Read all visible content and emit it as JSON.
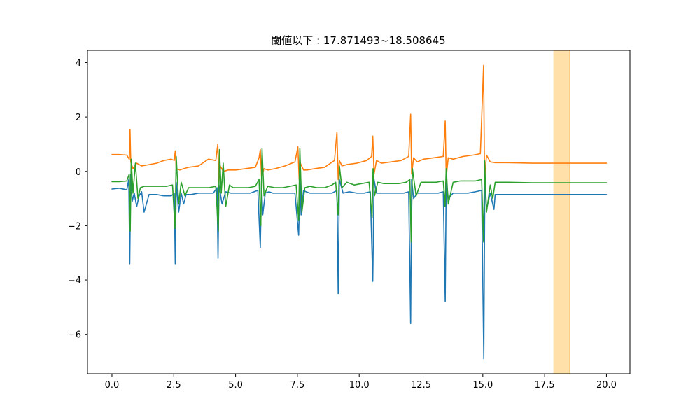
{
  "chart_data": {
    "type": "line",
    "title": "閾値以下 : 17.871493~18.508645",
    "xlabel": "",
    "ylabel": "",
    "xlim": [
      -0.99,
      20.95
    ],
    "ylim": [
      -7.45,
      4.45
    ],
    "grid": false,
    "legend": "none",
    "xticks": [
      0.0,
      2.5,
      5.0,
      7.5,
      10.0,
      12.5,
      15.0,
      17.5,
      20.0
    ],
    "xtick_labels": [
      "0.0",
      "2.5",
      "5.0",
      "7.5",
      "10.0",
      "12.5",
      "15.0",
      "17.5",
      "20.0"
    ],
    "yticks": [
      4,
      2,
      0,
      -2,
      -4,
      -6
    ],
    "ytick_labels": [
      "4",
      "2",
      "0",
      "−2",
      "−4",
      "−6"
    ],
    "highlight_span": {
      "x_start": 17.871493,
      "x_end": 18.508645,
      "color": "#ffe0a8",
      "edge_color": "#f7c97a"
    },
    "series": [
      {
        "color": "#1f77b4",
        "x": [
          0.0,
          0.3,
          0.6,
          0.68,
          0.72,
          0.76,
          0.82,
          0.9,
          1.0,
          1.1,
          1.2,
          1.3,
          1.5,
          1.8,
          2.1,
          2.4,
          2.52,
          2.56,
          2.6,
          2.7,
          2.8,
          2.9,
          3.0,
          3.2,
          3.5,
          3.8,
          4.1,
          4.25,
          4.29,
          4.33,
          4.45,
          4.6,
          4.8,
          5.0,
          5.3,
          5.6,
          5.9,
          6.0,
          6.05,
          6.1,
          6.2,
          6.35,
          6.5,
          6.8,
          7.1,
          7.4,
          7.55,
          7.6,
          7.65,
          7.75,
          7.85,
          8.0,
          8.3,
          8.6,
          8.9,
          9.1,
          9.15,
          9.2,
          9.35,
          9.6,
          9.9,
          10.2,
          10.45,
          10.55,
          10.6,
          10.7,
          10.9,
          11.2,
          11.5,
          11.8,
          12.0,
          12.08,
          12.12,
          12.2,
          12.35,
          12.6,
          12.9,
          13.2,
          13.4,
          13.48,
          13.52,
          13.6,
          13.8,
          14.1,
          14.4,
          14.7,
          14.95,
          15.04,
          15.08,
          15.15,
          15.3,
          15.45,
          15.5,
          15.6,
          16.0,
          17.0,
          18.0,
          19.0,
          20.0
        ],
        "y": [
          -0.65,
          -0.62,
          -0.68,
          -0.3,
          -3.4,
          -0.1,
          -1.1,
          -0.8,
          -1.3,
          -0.9,
          -0.75,
          -1.5,
          -0.85,
          -0.85,
          -0.9,
          -0.9,
          -0.8,
          -3.4,
          -0.4,
          -1.5,
          -0.8,
          -1.2,
          -0.85,
          -0.85,
          -0.8,
          -0.8,
          -0.8,
          -0.6,
          -3.2,
          -0.5,
          -1.2,
          -0.75,
          -0.8,
          -0.8,
          -0.8,
          -0.8,
          -0.7,
          -2.8,
          -0.4,
          -1.6,
          -0.8,
          -0.75,
          -0.8,
          -0.8,
          -0.8,
          -0.8,
          -2.35,
          -0.3,
          -1.6,
          -0.7,
          -0.75,
          -0.8,
          -0.8,
          -0.8,
          -0.8,
          -0.7,
          -4.5,
          -0.3,
          -0.8,
          -0.75,
          -0.8,
          -0.8,
          -0.75,
          -4.05,
          -0.3,
          -0.8,
          -0.8,
          -0.8,
          -0.8,
          -0.8,
          -0.75,
          -5.6,
          -0.3,
          -1.0,
          -0.8,
          -0.8,
          -0.8,
          -0.8,
          -0.75,
          -4.8,
          -0.3,
          -1.0,
          -0.8,
          -0.8,
          -0.8,
          -0.75,
          -0.7,
          -6.9,
          -0.3,
          -1.4,
          -0.8,
          -1.4,
          -0.85,
          -0.85,
          -0.85,
          -0.85,
          -0.85,
          -0.85,
          -0.85
        ]
      },
      {
        "color": "#ff7f0e",
        "x": [
          0.0,
          0.3,
          0.6,
          0.7,
          0.73,
          0.76,
          0.85,
          1.0,
          1.2,
          1.5,
          1.8,
          2.1,
          2.4,
          2.52,
          2.56,
          2.6,
          2.75,
          2.9,
          3.1,
          3.5,
          3.9,
          4.2,
          4.28,
          4.32,
          4.38,
          4.5,
          4.7,
          5.0,
          5.4,
          5.8,
          5.95,
          6.0,
          6.05,
          6.15,
          6.3,
          6.6,
          7.0,
          7.4,
          7.52,
          7.57,
          7.62,
          7.75,
          7.9,
          8.2,
          8.6,
          9.0,
          9.1,
          9.15,
          9.2,
          9.3,
          9.5,
          9.9,
          10.3,
          10.5,
          10.55,
          10.6,
          10.7,
          10.9,
          11.3,
          11.7,
          12.0,
          12.08,
          12.12,
          12.2,
          12.35,
          12.6,
          13.0,
          13.4,
          13.48,
          13.52,
          13.6,
          13.8,
          14.2,
          14.6,
          14.9,
          15.03,
          15.07,
          15.15,
          15.3,
          15.5,
          16.0,
          17.0,
          18.0,
          19.0,
          20.0
        ],
        "y": [
          0.62,
          0.62,
          0.6,
          0.45,
          1.55,
          0.35,
          0.1,
          0.3,
          0.2,
          0.25,
          0.3,
          0.4,
          0.45,
          0.4,
          0.75,
          0.1,
          0.05,
          0.1,
          0.15,
          0.2,
          0.45,
          0.4,
          1.0,
          -0.4,
          0.2,
          0.0,
          0.05,
          0.05,
          0.1,
          0.15,
          0.5,
          0.8,
          -0.2,
          0.1,
          0.05,
          0.1,
          0.2,
          0.35,
          0.9,
          -0.3,
          0.3,
          0.05,
          0.05,
          0.1,
          0.15,
          0.4,
          1.45,
          -0.3,
          0.4,
          0.2,
          0.25,
          0.3,
          0.4,
          0.55,
          1.3,
          -0.1,
          0.4,
          0.3,
          0.35,
          0.4,
          0.55,
          2.1,
          -0.1,
          0.5,
          0.35,
          0.45,
          0.5,
          0.55,
          1.85,
          -0.2,
          0.5,
          0.45,
          0.55,
          0.6,
          0.65,
          3.9,
          -0.3,
          0.6,
          0.35,
          0.32,
          0.32,
          0.3,
          0.3,
          0.3,
          0.3
        ]
      },
      {
        "color": "#2ca02c",
        "x": [
          0.0,
          0.3,
          0.6,
          0.7,
          0.74,
          0.78,
          0.85,
          0.95,
          1.05,
          1.15,
          1.3,
          1.6,
          1.9,
          2.2,
          2.45,
          2.55,
          2.6,
          2.7,
          2.8,
          2.95,
          3.1,
          3.3,
          3.6,
          3.9,
          4.2,
          4.3,
          4.35,
          4.42,
          4.5,
          4.6,
          4.75,
          4.9,
          5.2,
          5.5,
          5.8,
          5.95,
          6.02,
          6.07,
          6.15,
          6.3,
          6.6,
          6.9,
          7.2,
          7.45,
          7.55,
          7.6,
          7.68,
          7.8,
          8.0,
          8.3,
          8.6,
          8.9,
          9.05,
          9.15,
          9.2,
          9.3,
          9.5,
          9.8,
          10.1,
          10.4,
          10.52,
          10.56,
          10.62,
          10.75,
          11.0,
          11.3,
          11.6,
          11.9,
          12.05,
          12.1,
          12.15,
          12.3,
          12.5,
          12.8,
          13.1,
          13.4,
          13.47,
          13.52,
          13.6,
          13.8,
          14.1,
          14.4,
          14.7,
          14.95,
          15.03,
          15.07,
          15.15,
          15.3,
          15.4,
          15.5,
          15.6,
          16.0,
          17.0,
          18.0,
          19.0,
          20.0
        ],
        "y": [
          -0.38,
          -0.38,
          -0.35,
          -0.1,
          -2.2,
          0.45,
          -0.8,
          0.3,
          -1.0,
          -0.6,
          -0.55,
          -0.55,
          -0.55,
          -0.55,
          -0.5,
          -2.1,
          0.55,
          -1.2,
          -0.4,
          -0.9,
          -0.6,
          -0.6,
          -0.6,
          -0.6,
          -0.55,
          -2.2,
          0.8,
          -0.8,
          0.3,
          -1.3,
          -0.5,
          -0.6,
          -0.6,
          -0.6,
          -0.55,
          -0.3,
          -2.0,
          0.85,
          -0.9,
          -0.55,
          -0.6,
          -0.6,
          -0.55,
          -0.5,
          -1.8,
          0.85,
          -1.5,
          -0.6,
          -0.55,
          -0.6,
          -0.6,
          -0.5,
          -0.4,
          -1.6,
          0.2,
          -0.6,
          -0.4,
          -0.5,
          -0.45,
          -0.4,
          -1.7,
          0.1,
          -0.9,
          -0.4,
          -0.45,
          -0.45,
          -0.45,
          -0.4,
          -0.3,
          -2.6,
          0.1,
          -0.9,
          -0.4,
          -0.4,
          -0.4,
          -0.35,
          -1.3,
          0.1,
          -1.2,
          -0.4,
          -0.35,
          -0.35,
          -0.35,
          -0.3,
          -2.6,
          0.4,
          -1.5,
          -0.5,
          -1.0,
          -0.4,
          -0.4,
          -0.4,
          -0.42,
          -0.42,
          -0.42,
          -0.42
        ]
      }
    ]
  }
}
